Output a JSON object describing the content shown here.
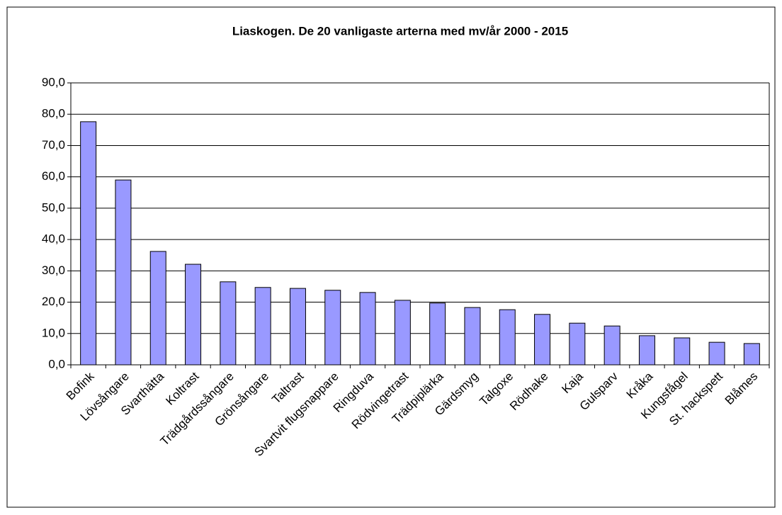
{
  "chart_data": {
    "type": "bar",
    "title": "Liaskogen. De 20 vanligaste arterna med mv/år 2000 - 2015",
    "categories": [
      "Bofink",
      "Lövsångare",
      "Svarthätta",
      "Koltrast",
      "Trädgårdssångare",
      "Grönsångare",
      "Taltrast",
      "Svartvit flugsnappare",
      "Ringduva",
      "Rödvingetrast",
      "Trädpiplärka",
      "Gärdsmyg",
      "Talgoxe",
      "Rödhake",
      "Kaja",
      "Gulsparv",
      "Kråka",
      "Kungsfågel",
      "St. hackspett",
      "Blåmes"
    ],
    "values": [
      77.6,
      59.0,
      36.2,
      32.1,
      26.5,
      24.7,
      24.4,
      23.8,
      23.1,
      20.6,
      19.7,
      18.3,
      17.6,
      16.1,
      13.3,
      12.4,
      9.3,
      8.6,
      7.2,
      6.8
    ],
    "color": "#9999ff",
    "ylim": [
      0,
      90
    ],
    "yticks": [
      {
        "value": 0,
        "label": "0,0"
      },
      {
        "value": 10,
        "label": "10,0"
      },
      {
        "value": 20,
        "label": "20,0"
      },
      {
        "value": 30,
        "label": "30,0"
      },
      {
        "value": 40,
        "label": "40,0"
      },
      {
        "value": 50,
        "label": "50,0"
      },
      {
        "value": 60,
        "label": "60,0"
      },
      {
        "value": 70,
        "label": "70,0"
      },
      {
        "value": 80,
        "label": "80,0"
      },
      {
        "value": 90,
        "label": "90,0"
      }
    ],
    "grid": true
  }
}
